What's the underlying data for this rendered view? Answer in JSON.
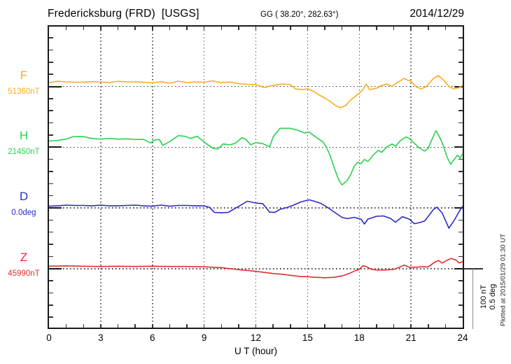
{
  "header": {
    "station": "Fredericksburg (FRD)  [USGS]",
    "coords": "GG ( 38.20°, 282.63°)",
    "date": "2014/12/29"
  },
  "footer": {
    "xlabel": "U T (hour)"
  },
  "scale_bar": {
    "label_nt": "100 nT",
    "label_deg": "0.5 deg"
  },
  "plotted_at": "Plotted at 2015/01/29 01:30 UT",
  "chart_data": {
    "type": "line",
    "title": "Fredericksburg (FRD) [USGS] magnetogram 2014/12/29",
    "xlabel": "U T (hour)",
    "x_range": [
      0,
      24
    ],
    "x_ticks": [
      0,
      3,
      6,
      9,
      12,
      15,
      18,
      21,
      24
    ],
    "grid": "dotted vertical gridlines every 3 h; dotted horizontal baseline per channel",
    "legend_position": "left margin channel labels",
    "scale_bar": {
      "nT_per_bar": 100,
      "deg_per_bar": 0.5
    },
    "points_format": "[UT_hour, offset_from_baseline_in_unit]",
    "series": [
      {
        "name": "F",
        "unit": "nT",
        "baseline": 51360,
        "baseline_label": "51360nT",
        "color": "#FFAA1C",
        "points": [
          [
            0,
            6.3
          ],
          [
            0.5,
            8.6
          ],
          [
            1,
            7.5
          ],
          [
            1.5,
            6.9
          ],
          [
            2,
            6.9
          ],
          [
            2.5,
            8
          ],
          [
            3,
            7.5
          ],
          [
            3.5,
            6.3
          ],
          [
            4,
            8.6
          ],
          [
            4.5,
            7.5
          ],
          [
            5,
            7.5
          ],
          [
            5.5,
            6.9
          ],
          [
            6,
            5.8
          ],
          [
            6.5,
            8
          ],
          [
            7,
            5.2
          ],
          [
            7.5,
            8.6
          ],
          [
            8,
            6.3
          ],
          [
            8.5,
            7.5
          ],
          [
            9,
            6.9
          ],
          [
            9.5,
            9.2
          ],
          [
            10,
            6.3
          ],
          [
            10.5,
            7.5
          ],
          [
            11,
            4.6
          ],
          [
            11.5,
            3.5
          ],
          [
            12,
            2.9
          ],
          [
            12.5,
            -1.7
          ],
          [
            13,
            1.7
          ],
          [
            13.5,
            4
          ],
          [
            14,
            2.9
          ],
          [
            14.3,
            -4
          ],
          [
            14.7,
            -5.2
          ],
          [
            15,
            -4
          ],
          [
            15.3,
            -7.5
          ],
          [
            15.7,
            -14.4
          ],
          [
            16,
            -19
          ],
          [
            16.3,
            -24.2
          ],
          [
            16.6,
            -31.1
          ],
          [
            16.9,
            -35.2
          ],
          [
            17.2,
            -31.7
          ],
          [
            17.5,
            -22.5
          ],
          [
            17.8,
            -15.6
          ],
          [
            18,
            -11
          ],
          [
            18.2,
            -5.8
          ],
          [
            18.4,
            4
          ],
          [
            18.6,
            -5.2
          ],
          [
            19,
            -2.9
          ],
          [
            19.3,
            1.7
          ],
          [
            19.6,
            4
          ],
          [
            19.9,
            0
          ],
          [
            20.2,
            6.3
          ],
          [
            20.6,
            13.3
          ],
          [
            20.8,
            10.4
          ],
          [
            21,
            8.6
          ],
          [
            21.3,
            -0.6
          ],
          [
            21.6,
            -4
          ],
          [
            21.9,
            0
          ],
          [
            22.3,
            13.3
          ],
          [
            22.6,
            17.9
          ],
          [
            22.9,
            10.4
          ],
          [
            23.2,
            0
          ],
          [
            23.5,
            -4
          ],
          [
            23.8,
            -1.7
          ],
          [
            24,
            1.7
          ]
        ]
      },
      {
        "name": "H",
        "unit": "nT",
        "baseline": 21450,
        "baseline_label": "21450nT",
        "color": "#29D24D",
        "points": [
          [
            0,
            10.1
          ],
          [
            0.5,
            11
          ],
          [
            1,
            13.3
          ],
          [
            1.4,
            17.3
          ],
          [
            2,
            17.3
          ],
          [
            2.5,
            14.4
          ],
          [
            3,
            13.3
          ],
          [
            3.5,
            14.4
          ],
          [
            4,
            13.3
          ],
          [
            4.5,
            13.8
          ],
          [
            5,
            12.7
          ],
          [
            5.5,
            12.7
          ],
          [
            5.9,
            6.9
          ],
          [
            6.1,
            11.5
          ],
          [
            6.4,
            12.7
          ],
          [
            6.6,
            2.9
          ],
          [
            7,
            9.2
          ],
          [
            7.5,
            19
          ],
          [
            7.9,
            17.9
          ],
          [
            8.2,
            14.4
          ],
          [
            8.6,
            17.9
          ],
          [
            9.1,
            6.3
          ],
          [
            9.5,
            -1.7
          ],
          [
            9.8,
            -2.9
          ],
          [
            10.1,
            5.2
          ],
          [
            10.5,
            4
          ],
          [
            10.8,
            6.3
          ],
          [
            11.2,
            15.6
          ],
          [
            11.4,
            13.3
          ],
          [
            11.7,
            4
          ],
          [
            12,
            7.5
          ],
          [
            12.4,
            5.8
          ],
          [
            12.8,
            0.6
          ],
          [
            13,
            16.7
          ],
          [
            13.4,
            31.1
          ],
          [
            14,
            31.1
          ],
          [
            14.4,
            28.2
          ],
          [
            14.8,
            23.6
          ],
          [
            15.1,
            24.8
          ],
          [
            15.3,
            20.2
          ],
          [
            15.6,
            14.4
          ],
          [
            15.9,
            8.6
          ],
          [
            16.1,
            -0.6
          ],
          [
            16.3,
            -13.3
          ],
          [
            16.55,
            -34
          ],
          [
            16.8,
            -53.6
          ],
          [
            17,
            -62.2
          ],
          [
            17.3,
            -54.8
          ],
          [
            17.5,
            -45.5
          ],
          [
            17.7,
            -31.7
          ],
          [
            17.9,
            -24.8
          ],
          [
            18.1,
            -27.1
          ],
          [
            18.3,
            -20.2
          ],
          [
            18.5,
            -23.6
          ],
          [
            18.8,
            -13.3
          ],
          [
            19.1,
            -5.2
          ],
          [
            19.3,
            -8.6
          ],
          [
            19.6,
            0.6
          ],
          [
            19.9,
            5.2
          ],
          [
            20.1,
            1.7
          ],
          [
            20.4,
            11
          ],
          [
            20.7,
            16.7
          ],
          [
            20.9,
            14.4
          ],
          [
            21.2,
            6.3
          ],
          [
            21.5,
            -1.7
          ],
          [
            21.8,
            -6.3
          ],
          [
            22,
            -1.7
          ],
          [
            22.2,
            12.1
          ],
          [
            22.45,
            27.1
          ],
          [
            22.7,
            14.4
          ],
          [
            22.9,
            0.6
          ],
          [
            23.1,
            -16.7
          ],
          [
            23.3,
            -28.2
          ],
          [
            23.5,
            -20.2
          ],
          [
            23.7,
            -13.3
          ],
          [
            23.85,
            -17.9
          ],
          [
            24,
            -11
          ]
        ]
      },
      {
        "name": "D",
        "unit": "deg",
        "baseline": 0.0,
        "baseline_label": "0.0deg",
        "color": "#2A2AC8",
        "points": [
          [
            0,
            0.014
          ],
          [
            0.5,
            0.017
          ],
          [
            1,
            0.023
          ],
          [
            1.5,
            0.02
          ],
          [
            2,
            0.02
          ],
          [
            2.5,
            0.017
          ],
          [
            3,
            0.023
          ],
          [
            3.5,
            0.017
          ],
          [
            4,
            0.017
          ],
          [
            4.5,
            0.02
          ],
          [
            5,
            0.023
          ],
          [
            5.5,
            0.017
          ],
          [
            6,
            0.014
          ],
          [
            6.5,
            0.023
          ],
          [
            7,
            0.014
          ],
          [
            7.5,
            0.02
          ],
          [
            8,
            0.02
          ],
          [
            8.5,
            0.017
          ],
          [
            9,
            0.017
          ],
          [
            9.3,
            0.006
          ],
          [
            9.6,
            -0.037
          ],
          [
            10,
            -0.04
          ],
          [
            10.4,
            -0.037
          ],
          [
            10.7,
            -0.012
          ],
          [
            11,
            0.012
          ],
          [
            11.5,
            0.055
          ],
          [
            11.8,
            0.046
          ],
          [
            12,
            0.04
          ],
          [
            12.4,
            0.035
          ],
          [
            12.8,
            -0.035
          ],
          [
            13.1,
            -0.037
          ],
          [
            13.4,
            -0.012
          ],
          [
            13.8,
            0.003
          ],
          [
            14.2,
            0.023
          ],
          [
            14.6,
            0.049
          ],
          [
            15.1,
            0.066
          ],
          [
            15.4,
            0.055
          ],
          [
            15.8,
            0.035
          ],
          [
            16.2,
            0
          ],
          [
            16.6,
            -0.04
          ],
          [
            17,
            -0.078
          ],
          [
            17.3,
            -0.089
          ],
          [
            17.7,
            -0.078
          ],
          [
            18.1,
            -0.092
          ],
          [
            18.3,
            -0.133
          ],
          [
            18.5,
            -0.092
          ],
          [
            19,
            -0.069
          ],
          [
            19.4,
            -0.066
          ],
          [
            19.8,
            -0.086
          ],
          [
            20.1,
            -0.118
          ],
          [
            20.5,
            -0.072
          ],
          [
            20.9,
            -0.092
          ],
          [
            21.2,
            -0.13
          ],
          [
            21.5,
            -0.121
          ],
          [
            21.8,
            -0.107
          ],
          [
            22.3,
            -0.014
          ],
          [
            22.5,
            0.006
          ],
          [
            22.8,
            -0.04
          ],
          [
            23.2,
            -0.167
          ],
          [
            23.5,
            -0.104
          ],
          [
            23.8,
            -0.029
          ],
          [
            24,
            0.014
          ]
        ]
      },
      {
        "name": "Z",
        "unit": "nT",
        "baseline": 45990,
        "baseline_label": "45990nT",
        "color": "#E32D2D",
        "points": [
          [
            0,
            4
          ],
          [
            1,
            4.6
          ],
          [
            2,
            4
          ],
          [
            3,
            3.5
          ],
          [
            4,
            4
          ],
          [
            5,
            3.5
          ],
          [
            6,
            4
          ],
          [
            7,
            3.5
          ],
          [
            8,
            3.5
          ],
          [
            9,
            2.9
          ],
          [
            9.5,
            2.3
          ],
          [
            10,
            1.7
          ],
          [
            10.5,
            0
          ],
          [
            11,
            -1.7
          ],
          [
            11.5,
            -2.9
          ],
          [
            12,
            -4.6
          ],
          [
            12.5,
            -6.3
          ],
          [
            13,
            -8.1
          ],
          [
            13.5,
            -9.2
          ],
          [
            14,
            -11
          ],
          [
            14.5,
            -12.7
          ],
          [
            15,
            -13.3
          ],
          [
            15.5,
            -14.4
          ],
          [
            16,
            -15
          ],
          [
            16.5,
            -14.4
          ],
          [
            17,
            -12.1
          ],
          [
            17.4,
            -8.1
          ],
          [
            17.8,
            -2.9
          ],
          [
            18,
            -1.2
          ],
          [
            18.2,
            4.6
          ],
          [
            18.4,
            3.5
          ],
          [
            18.7,
            -1.2
          ],
          [
            19,
            -2.3
          ],
          [
            19.5,
            -2.3
          ],
          [
            20,
            -1.2
          ],
          [
            20.4,
            2.9
          ],
          [
            20.6,
            5.8
          ],
          [
            20.9,
            2.3
          ],
          [
            21.2,
            2.3
          ],
          [
            21.6,
            2.9
          ],
          [
            22,
            2.9
          ],
          [
            22.4,
            11
          ],
          [
            22.6,
            13.3
          ],
          [
            22.8,
            9.2
          ],
          [
            23.1,
            13.8
          ],
          [
            23.3,
            16.7
          ],
          [
            23.6,
            14.4
          ],
          [
            23.8,
            9.2
          ],
          [
            24,
            11.5
          ]
        ]
      }
    ]
  }
}
